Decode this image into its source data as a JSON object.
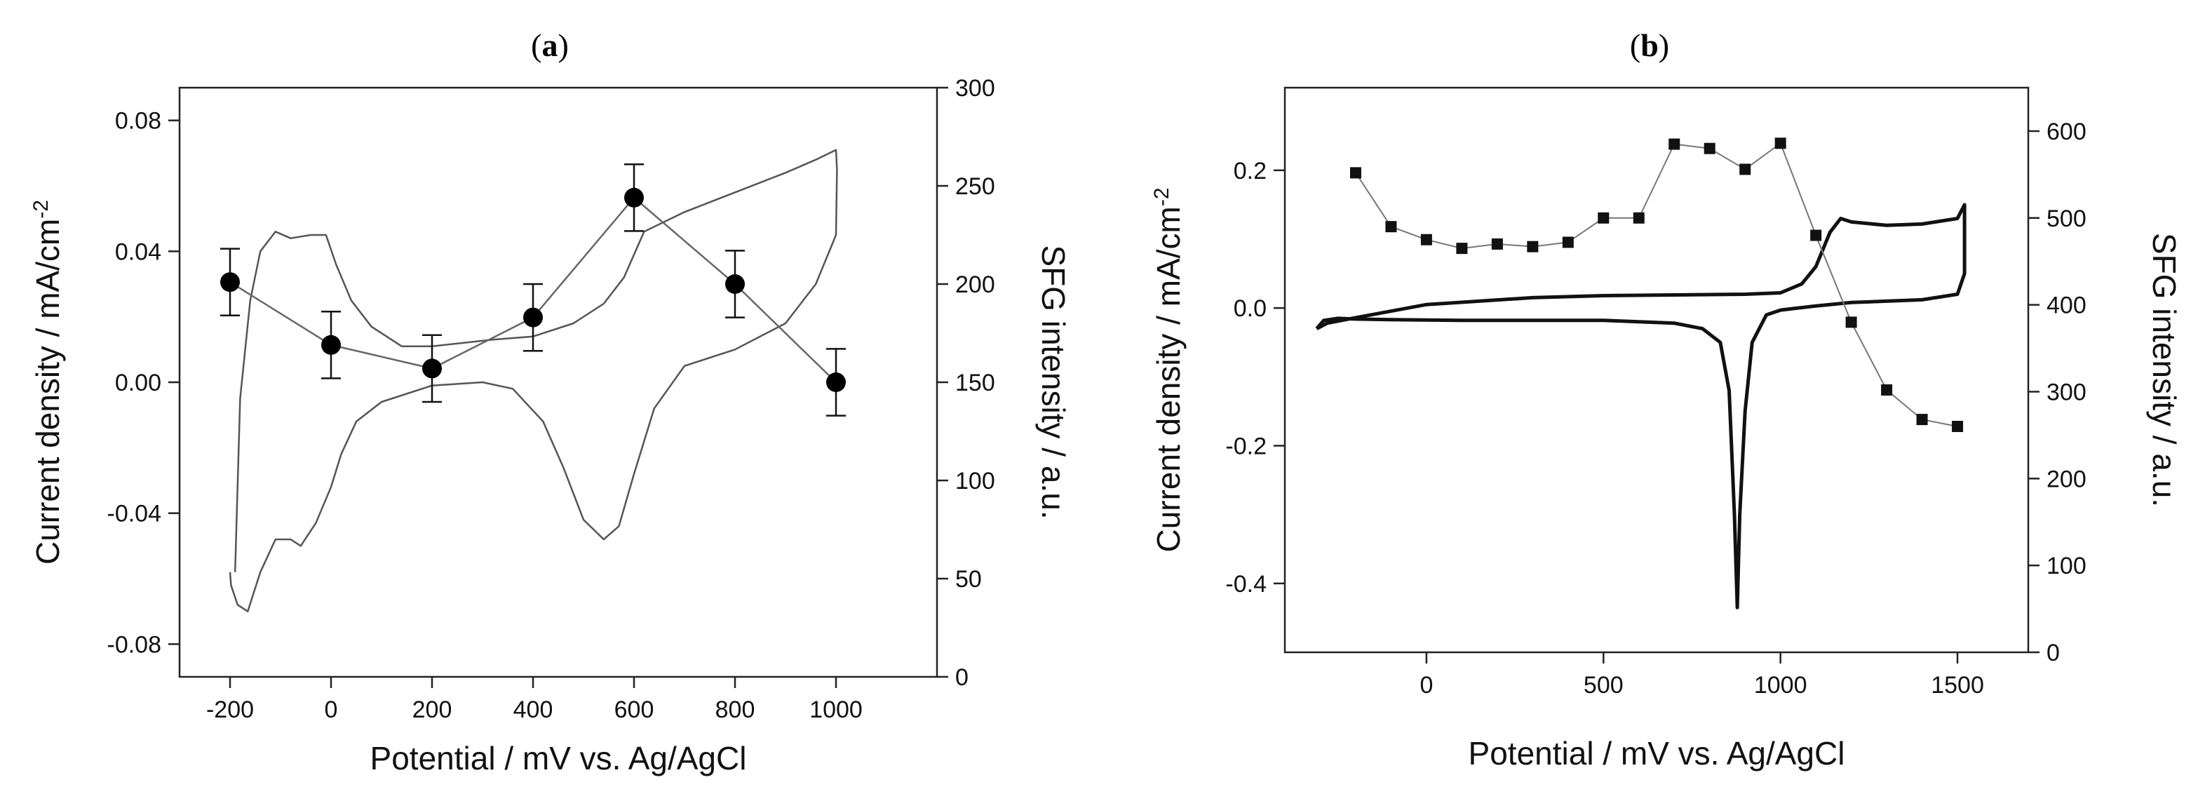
{
  "figure": {
    "panel_a": {
      "label_open": "(",
      "label_letter": "a",
      "label_close": ")"
    },
    "panel_b": {
      "label_open": "(",
      "label_letter": "b",
      "label_close": ")"
    }
  },
  "chart_data": [
    {
      "id": "a",
      "type": "line",
      "title": "(a)",
      "xlabel": "Potential / mV vs. Ag/AgCl",
      "ylabel": "Current density / mA/cm-2",
      "ylabel_main": "Current density / mA/cm",
      "ylabel_sup": "-2",
      "y2label": "SFG intensity / a.u.",
      "xlim": [
        -300,
        1200
      ],
      "ylim": [
        -0.09,
        0.09
      ],
      "y2lim": [
        0,
        300
      ],
      "xticks": [
        -200,
        0,
        200,
        400,
        600,
        800,
        1000
      ],
      "xtick_labels": [
        "-200",
        "0",
        "200",
        "400",
        "600",
        "800",
        "1000"
      ],
      "yticks": [
        -0.08,
        -0.04,
        0.0,
        0.04,
        0.08
      ],
      "ytick_labels": [
        "-0.08",
        "-0.04",
        "0.00",
        "0.04",
        "0.08"
      ],
      "y2ticks": [
        0,
        50,
        100,
        150,
        200,
        250,
        300
      ],
      "y2tick_labels": [
        "0",
        "50",
        "100",
        "150",
        "200",
        "250",
        "300"
      ],
      "grid": false,
      "series": [
        {
          "name": "CV current density",
          "axis": "left",
          "style": "thin-line",
          "color": "#555555",
          "x": [
            -190,
            -180,
            -160,
            -140,
            -110,
            -80,
            -40,
            -10,
            10,
            40,
            80,
            140,
            200,
            260,
            320,
            400,
            480,
            540,
            580,
            620,
            700,
            800,
            900,
            960,
            1000,
            1002,
            1000,
            960,
            900,
            800,
            700,
            640,
            600,
            570,
            540,
            500,
            460,
            420,
            360,
            300,
            200,
            100,
            50,
            20,
            0,
            -30,
            -60,
            -80,
            -110,
            -140,
            -165,
            -185,
            -198,
            -200
          ],
          "y": [
            -0.058,
            -0.005,
            0.025,
            0.04,
            0.046,
            0.044,
            0.045,
            0.045,
            0.036,
            0.025,
            0.017,
            0.011,
            0.011,
            0.012,
            0.013,
            0.014,
            0.018,
            0.024,
            0.032,
            0.046,
            0.052,
            0.058,
            0.064,
            0.068,
            0.071,
            0.065,
            0.045,
            0.03,
            0.018,
            0.01,
            0.005,
            -0.008,
            -0.028,
            -0.044,
            -0.048,
            -0.042,
            -0.026,
            -0.012,
            -0.002,
            0.0,
            -0.001,
            -0.006,
            -0.012,
            -0.022,
            -0.032,
            -0.043,
            -0.05,
            -0.048,
            -0.048,
            -0.058,
            -0.07,
            -0.068,
            -0.062,
            -0.058
          ]
        },
        {
          "name": "SFG intensity",
          "axis": "right",
          "style": "circle-markers-with-errorbars",
          "color": "#000000",
          "x": [
            -200,
            0,
            200,
            400,
            600,
            800,
            1000
          ],
          "y": [
            201,
            169,
            157,
            183,
            244,
            200,
            150
          ],
          "error": [
            17,
            17,
            17,
            17,
            17,
            17,
            17
          ]
        }
      ]
    },
    {
      "id": "b",
      "type": "line",
      "title": "(b)",
      "xlabel": "Potential / mV vs. Ag/AgCl",
      "ylabel": "Current density / mA/cm-2",
      "ylabel_main": "Current density / mA/cm",
      "ylabel_sup": "-2",
      "y2label": "SFG intensity / a.u.",
      "xlim": [
        -400,
        1700
      ],
      "ylim": [
        -0.5,
        0.32
      ],
      "y2lim": [
        0,
        650
      ],
      "xticks": [
        0,
        500,
        1000,
        1500
      ],
      "xtick_labels": [
        "0",
        "500",
        "1000",
        "1500"
      ],
      "yticks": [
        -0.4,
        -0.2,
        0.0,
        0.2
      ],
      "ytick_labels": [
        "-0.4",
        "-0.2",
        "0.0",
        "0.2"
      ],
      "y2ticks": [
        0,
        100,
        200,
        300,
        400,
        500,
        600
      ],
      "y2tick_labels": [
        "0",
        "100",
        "200",
        "300",
        "400",
        "500",
        "600"
      ],
      "grid": false,
      "series": [
        {
          "name": "CV current density",
          "axis": "left",
          "style": "thick-line",
          "color": "#111111",
          "x": [
            -310,
            -280,
            -200,
            0,
            300,
            500,
            700,
            900,
            1000,
            1060,
            1100,
            1140,
            1170,
            1200,
            1300,
            1400,
            1500,
            1520,
            1520,
            1500,
            1400,
            1200,
            1100,
            1050,
            1000,
            960,
            920,
            900,
            885,
            878,
            870,
            855,
            830,
            780,
            700,
            500,
            300,
            100,
            -100,
            -200,
            -250,
            -290,
            -310
          ],
          "y": [
            -0.03,
            -0.022,
            -0.014,
            0.005,
            0.015,
            0.018,
            0.019,
            0.02,
            0.022,
            0.035,
            0.06,
            0.11,
            0.13,
            0.125,
            0.12,
            0.122,
            0.13,
            0.15,
            0.05,
            0.02,
            0.012,
            0.008,
            0.003,
            0.0,
            -0.003,
            -0.01,
            -0.05,
            -0.15,
            -0.3,
            -0.435,
            -0.3,
            -0.12,
            -0.05,
            -0.03,
            -0.022,
            -0.018,
            -0.018,
            -0.018,
            -0.017,
            -0.016,
            -0.015,
            -0.018,
            -0.03
          ]
        },
        {
          "name": "SFG intensity",
          "axis": "right",
          "style": "square-markers",
          "color": "#111111",
          "x": [
            -200,
            -100,
            0,
            100,
            200,
            300,
            400,
            500,
            600,
            700,
            800,
            900,
            1000,
            1100,
            1200,
            1300,
            1400,
            1500
          ],
          "y": [
            552,
            490,
            475,
            465,
            470,
            467,
            472,
            500,
            500,
            585,
            580,
            556,
            586,
            480,
            380,
            302,
            268,
            260
          ]
        }
      ]
    }
  ]
}
